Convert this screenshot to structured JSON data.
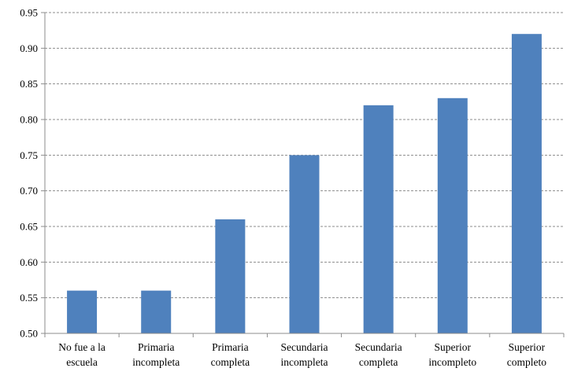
{
  "chart_data": {
    "type": "bar",
    "title": "",
    "xlabel": "",
    "ylabel": "",
    "categories": [
      [
        "No fue a la",
        "escuela"
      ],
      [
        "Primaria",
        "incompleta"
      ],
      [
        "Primaria",
        "completa"
      ],
      [
        "Secundaria",
        "incompleta"
      ],
      [
        "Secundaria",
        "completa"
      ],
      [
        "Superior",
        "incompleto"
      ],
      [
        "Superior",
        "completo"
      ]
    ],
    "values": [
      0.56,
      0.56,
      0.66,
      0.75,
      0.82,
      0.83,
      0.92
    ],
    "ylim": [
      0.5,
      0.95
    ],
    "yticks": [
      "0.50",
      "0.55",
      "0.60",
      "0.65",
      "0.70",
      "0.75",
      "0.80",
      "0.85",
      "0.90",
      "0.95"
    ],
    "grid": true,
    "legend": "none",
    "colors": {
      "bar": "#4f81bd",
      "grid": "#8c8c8c",
      "axis": "#8c8c8c"
    }
  }
}
